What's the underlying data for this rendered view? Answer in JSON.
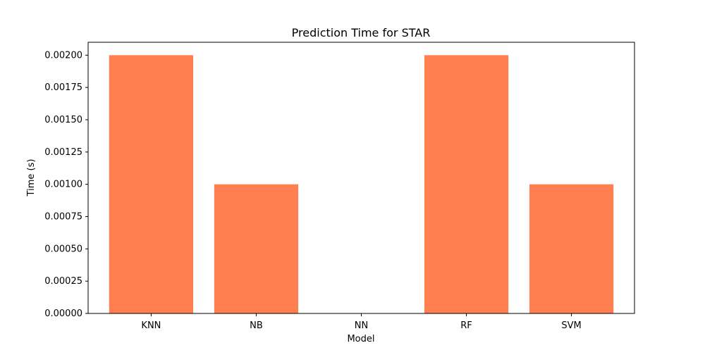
{
  "chart_data": {
    "type": "bar",
    "title": "Prediction Time for STAR",
    "xlabel": "Model",
    "ylabel": "Time (s)",
    "categories": [
      "KNN",
      "NB",
      "NN",
      "RF",
      "SVM"
    ],
    "values": [
      0.002,
      0.001,
      0.0,
      0.002,
      0.001
    ],
    "ylim": [
      0,
      0.0021
    ],
    "yticks": [
      0.0,
      0.00025,
      0.0005,
      0.00075,
      0.001,
      0.00125,
      0.0015,
      0.00175,
      0.002
    ],
    "ytick_labels": [
      "0.00000",
      "0.00025",
      "0.00050",
      "0.00075",
      "0.00100",
      "0.00125",
      "0.00150",
      "0.00175",
      "0.00200"
    ],
    "grid": false,
    "bar_color": "#ff7f50"
  }
}
